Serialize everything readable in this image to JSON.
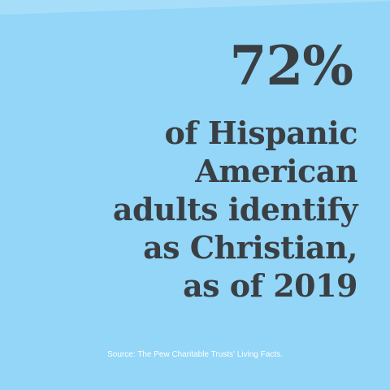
{
  "infographic": {
    "stat_value": "72%",
    "statement_lines": [
      "of Hispanic",
      "American",
      "adults identify",
      "as Christian,",
      "as of 2019"
    ],
    "source": "Source: The Pew Charitable Trusts' Living Facts."
  },
  "colors": {
    "background": "#93d6f7",
    "text": "#3a3f44",
    "source_text": "#ffffff"
  }
}
